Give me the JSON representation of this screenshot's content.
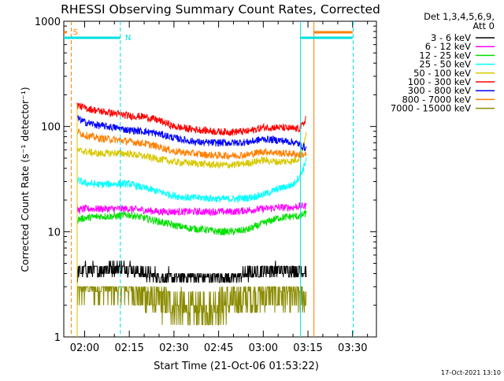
{
  "chart_data": {
    "type": "line",
    "title": "RHESSI Observing Summary Count Rates, Corrected",
    "xlabel": "Start Time (21-Oct-06 01:53:22)",
    "ylabel": "Corrected Count Rate (s⁻¹ detector⁻¹)",
    "yscale": "log",
    "ylim": [
      1,
      1000
    ],
    "xlim_minutes": [
      -7,
      98
    ],
    "y_ticks": [
      "1",
      "10",
      "100",
      "1000"
    ],
    "x_ticks": [
      {
        "label": "02:00",
        "m": 0
      },
      {
        "label": "02:15",
        "m": 15
      },
      {
        "label": "02:30",
        "m": 30
      },
      {
        "label": "02:45",
        "m": 45
      },
      {
        "label": "03:00",
        "m": 60
      },
      {
        "label": "03:15",
        "m": 75
      },
      {
        "label": "03:30",
        "m": 90
      }
    ],
    "legend_header": [
      "Det 1,3,4,5,6,9,",
      "Att 0"
    ],
    "legend_position": "right",
    "timestamp": "17-Oct-2021 13:10",
    "flags": {
      "labels": [
        {
          "text": "S",
          "m": -5.5
        },
        {
          "text": "N",
          "m": 12
        }
      ],
      "bars": [
        {
          "name": "cyan",
          "color": "#00e0e0",
          "segments": [
            [
              -7,
              12
            ],
            [
              72.5,
              90
            ]
          ]
        },
        {
          "name": "orange",
          "color": "#ff8000",
          "segments": [
            [
              -7,
              -6
            ],
            [
              77,
              90
            ]
          ]
        }
      ],
      "vlines": [
        {
          "m": -4.5,
          "color": "#ff8000",
          "dash": true
        },
        {
          "m": 12,
          "color": "#00e0e0",
          "dash": true
        },
        {
          "m": 72.5,
          "color": "#00e0e0",
          "dash": false
        },
        {
          "m": 77,
          "color": "#ff8000",
          "dash": false
        },
        {
          "m": 90.2,
          "color": "#00e0e0",
          "dash": true
        }
      ]
    },
    "x": [
      -2.5,
      0,
      5,
      10,
      15,
      20,
      25,
      30,
      35,
      40,
      45,
      50,
      55,
      60,
      65,
      70,
      72,
      73.5,
      74.5
    ],
    "series": [
      {
        "name": "3 - 6 keV",
        "color": "#000000",
        "values": [
          4,
          4.3,
          4.3,
          4.5,
          4.5,
          4,
          3.7,
          3.7,
          3.7,
          3.7,
          3.7,
          3.7,
          4,
          4.3,
          4.3,
          4.3,
          4.3,
          4.3,
          4.3
        ]
      },
      {
        "name": "6 - 12 keV",
        "color": "#ff00ff",
        "values": [
          16,
          16.5,
          16.5,
          16.5,
          16.5,
          16,
          15.5,
          15.5,
          15.5,
          15.5,
          15.5,
          15.5,
          16,
          16.5,
          17,
          17,
          17.5,
          17.5,
          17.5
        ]
      },
      {
        "name": "12 - 25 keV",
        "color": "#00e000",
        "values": [
          13,
          13.5,
          14,
          14,
          14.5,
          13.5,
          12.5,
          11.5,
          10.8,
          10.5,
          10,
          10,
          10.5,
          12,
          13.5,
          14,
          14,
          14.5,
          15
        ]
      },
      {
        "name": "25 - 50 keV",
        "color": "#00ffff",
        "values": [
          31,
          29,
          28,
          28.5,
          28.5,
          26,
          24,
          22,
          21,
          21,
          20.5,
          20.5,
          21,
          22.5,
          25.5,
          28,
          33,
          40,
          50
        ]
      },
      {
        "name": "50 - 100 keV",
        "color": "#d8c800",
        "values": [
          59,
          58,
          55,
          56,
          55,
          52,
          49,
          46,
          45,
          44,
          43,
          43,
          45,
          48,
          46,
          47,
          50,
          65,
          85
        ]
      },
      {
        "name": "100 - 300 keV",
        "color": "#ff0000",
        "values": [
          160,
          150,
          140,
          133,
          126,
          124,
          114,
          100,
          95,
          92,
          89,
          89,
          90,
          98,
          98,
          95,
          95,
          105,
          125
        ]
      },
      {
        "name": "300 - 800 keV",
        "color": "#0000ff",
        "values": [
          120,
          110,
          102,
          98,
          92,
          90,
          85,
          78,
          73,
          70,
          70,
          70,
          71,
          76,
          74,
          71,
          68,
          64,
          62
        ]
      },
      {
        "name": "800 - 7000 keV",
        "color": "#ff8000",
        "values": [
          90,
          83,
          77,
          75,
          72,
          69,
          64,
          58,
          56,
          54,
          53,
          53,
          54,
          58,
          56,
          55,
          54,
          54,
          54
        ]
      },
      {
        "name": "7000 - 15000 keV",
        "color": "#8b8b00",
        "values": [
          2.5,
          3.2,
          3,
          3,
          3,
          2.5,
          2.2,
          2,
          1.8,
          1.8,
          2,
          2.2,
          2.4,
          2.6,
          2.6,
          2.4,
          2.4,
          2.4,
          2.4
        ]
      }
    ]
  }
}
